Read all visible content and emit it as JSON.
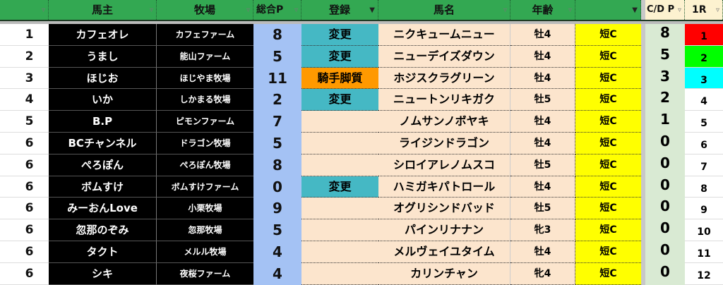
{
  "headers": {
    "rank": "",
    "owner": "馬主",
    "farm": "牧場",
    "points": "総合P",
    "register": "登録",
    "horse": "馬名",
    "age": "年齢",
    "type": "",
    "cdp": "C/D P",
    "r1": "1R"
  },
  "colors": {
    "header": "#33a852",
    "owner_bg": "#000000",
    "points_bg": "#a4c2f4",
    "change_bg": "#45b8c4",
    "jockey_bg": "#ff9900",
    "horse_bg": "#fce5cd",
    "type_bg": "#ffff00",
    "cdp_bg": "#d9ead3"
  },
  "rows": [
    {
      "rank": "1",
      "owner": "カフェオレ",
      "farm": "カフェファーム",
      "points": "8",
      "register": "変更",
      "horse": "ニクキュームニュー",
      "age": "牡4",
      "type": "短C",
      "cdp": "8",
      "r1": "1",
      "r1_color": "#ff0000"
    },
    {
      "rank": "2",
      "owner": "うまし",
      "farm": "能山ファーム",
      "points": "5",
      "register": "変更",
      "horse": "ニューデイズダウン",
      "age": "牡4",
      "type": "短C",
      "cdp": "5",
      "r1": "2",
      "r1_color": "#00ff00"
    },
    {
      "rank": "3",
      "owner": "ほじお",
      "farm": "ほじやま牧場",
      "points": "11",
      "register": "騎手脚質",
      "horse": "ホジスクラグリーン",
      "age": "牡4",
      "type": "短C",
      "cdp": "3",
      "r1": "3",
      "r1_color": "#00ffff"
    },
    {
      "rank": "4",
      "owner": "いか",
      "farm": "しかまる牧場",
      "points": "2",
      "register": "変更",
      "horse": "ニュートンリキガク",
      "age": "牡5",
      "type": "短C",
      "cdp": "2",
      "r1": "4"
    },
    {
      "rank": "5",
      "owner": "B.P",
      "farm": "ピモンファーム",
      "points": "7",
      "register": "",
      "horse": "ノムサンノボヤキ",
      "age": "牡4",
      "type": "短C",
      "cdp": "1",
      "r1": "5"
    },
    {
      "rank": "6",
      "owner": "BCチャンネル",
      "farm": "ドラゴン牧場",
      "points": "5",
      "register": "",
      "horse": "ライジンドラゴン",
      "age": "牡4",
      "type": "短C",
      "cdp": "0",
      "r1": "6"
    },
    {
      "rank": "6",
      "owner": "ぺろぽん",
      "farm": "ぺろぽん牧場",
      "points": "8",
      "register": "",
      "horse": "シロイアレノムスコ",
      "age": "牡5",
      "type": "短C",
      "cdp": "0",
      "r1": "7"
    },
    {
      "rank": "6",
      "owner": "ボムすけ",
      "farm": "ボムすけファーム",
      "points": "0",
      "register": "変更",
      "horse": "ハミガキパトロール",
      "age": "牡4",
      "type": "短C",
      "cdp": "0",
      "r1": "8"
    },
    {
      "rank": "6",
      "owner": "みーおんLove",
      "farm": "小栗牧場",
      "points": "9",
      "register": "",
      "horse": "オグリシンドバッド",
      "age": "牡5",
      "type": "短C",
      "cdp": "0",
      "r1": "9"
    },
    {
      "rank": "6",
      "owner": "忽那のぞみ",
      "farm": "忽那牧場",
      "points": "5",
      "register": "",
      "horse": "パインリナナン",
      "age": "牝3",
      "type": "短C",
      "cdp": "0",
      "r1": "10"
    },
    {
      "rank": "6",
      "owner": "タクト",
      "farm": "メルル牧場",
      "points": "4",
      "register": "",
      "horse": "メルヴェイユタイム",
      "age": "牡4",
      "type": "短C",
      "cdp": "0",
      "r1": "11"
    },
    {
      "rank": "6",
      "owner": "シキ",
      "farm": "夜桜ファーム",
      "points": "4",
      "register": "",
      "horse": "カリンチャン",
      "age": "牝4",
      "type": "短C",
      "cdp": "0",
      "r1": "12"
    }
  ]
}
